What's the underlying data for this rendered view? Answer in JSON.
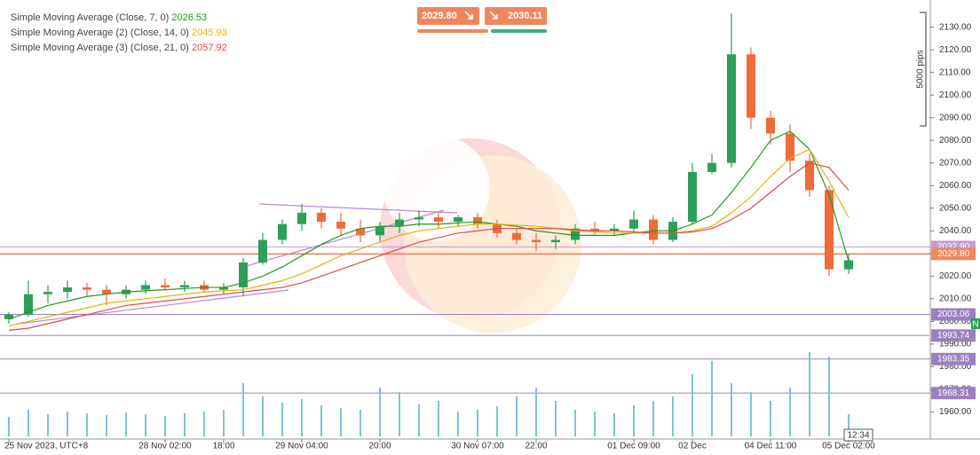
{
  "chart_data": {
    "type": "candlestick",
    "x": [
      "25 Nov 2023, UTC+8",
      null,
      null,
      null,
      null,
      null,
      null,
      null,
      "28 Nov 02:00",
      null,
      null,
      "18:00",
      null,
      null,
      null,
      "29 Nov 04:00",
      null,
      null,
      null,
      "20:00",
      null,
      null,
      null,
      null,
      "30 Nov 07:00",
      null,
      null,
      "22:00",
      null,
      null,
      null,
      null,
      "01 Dec 09:00",
      null,
      null,
      "02 Dec",
      null,
      null,
      null,
      "04 Dec 11:00",
      null,
      null,
      null,
      "05 Dec 02:00"
    ],
    "open": [
      2001,
      2003,
      2012,
      2013,
      2015,
      2014,
      2012,
      2014,
      2016,
      2015,
      2016,
      2014,
      2015,
      2026,
      2036,
      2043,
      2048,
      2044,
      2041,
      2038,
      2042,
      2045,
      2046,
      2044,
      2046,
      2043,
      2039,
      2036,
      2035,
      2036,
      2041,
      2040,
      2041,
      2045,
      2036,
      2044,
      2066,
      2070,
      2118,
      2090,
      2083,
      2071,
      2058,
      2023
    ],
    "high": [
      2004,
      2018,
      2016,
      2018,
      2017,
      2016,
      2016,
      2018,
      2019,
      2018,
      2018,
      2017,
      2028,
      2039,
      2045,
      2052,
      2050,
      2048,
      2045,
      2044,
      2048,
      2049,
      2048,
      2047,
      2048,
      2045,
      2041,
      2039,
      2038,
      2043,
      2044,
      2043,
      2049,
      2047,
      2046,
      2070,
      2074,
      2136,
      2121,
      2093,
      2087,
      2074,
      2060,
      2030
    ],
    "low": [
      1999,
      2002,
      2008,
      2010,
      2011,
      2007,
      2010,
      2012,
      2014,
      2013,
      2013,
      2012,
      2011,
      2025,
      2034,
      2040,
      2041,
      2038,
      2035,
      2035,
      2039,
      2042,
      2041,
      2042,
      2041,
      2037,
      2034,
      2031,
      2032,
      2034,
      2038,
      2038,
      2039,
      2034,
      2035,
      2043,
      2065,
      2068,
      2085,
      2078,
      2066,
      2055,
      2020,
      2021
    ],
    "close": [
      2003,
      2012,
      2013,
      2015,
      2014,
      2012,
      2014,
      2016,
      2015,
      2016,
      2014,
      2015,
      2026,
      2036,
      2043,
      2048,
      2044,
      2041,
      2038,
      2042,
      2045,
      2046,
      2044,
      2046,
      2043,
      2039,
      2036,
      2035,
      2036,
      2041,
      2040,
      2041,
      2045,
      2036,
      2044,
      2066,
      2070,
      2118,
      2090,
      2083,
      2071,
      2058,
      2023,
      2027
    ],
    "up_color": "#2e9e5b",
    "down_color": "#f06a3a",
    "series": [
      {
        "name": "Simple Moving Average (Close, 7, 0)",
        "color": "#1f9a1f",
        "values": [
          2001,
          2004,
          2007,
          2009,
          2011,
          2012,
          2013,
          2013.5,
          2014,
          2014.5,
          2015,
          2015,
          2017,
          2020,
          2024,
          2029,
          2034,
          2038,
          2041,
          2042,
          2042,
          2043,
          2043,
          2043.5,
          2044,
          2043,
          2042,
          2040,
          2039,
          2038,
          2038,
          2038,
          2039,
          2040,
          2040,
          2043,
          2047,
          2057,
          2068,
          2080,
          2084,
          2076,
          2056,
          2026.53
        ]
      },
      {
        "name": "Simple Moving Average (2) (Close, 14, 0)",
        "color": "#e8b00c",
        "values": [
          1998,
          2000,
          2002,
          2004,
          2006,
          2008,
          2009,
          2010,
          2011,
          2012,
          2013,
          2013.5,
          2014,
          2016,
          2018,
          2021,
          2025,
          2029,
          2032,
          2035,
          2038,
          2040,
          2041,
          2042,
          2043,
          2043,
          2042.5,
          2042,
          2041,
          2040,
          2039.5,
          2039,
          2039,
          2039,
          2039,
          2040,
          2042,
          2048,
          2055,
          2064,
          2072,
          2076,
          2062,
          2045.93
        ]
      },
      {
        "name": "Simple Moving Average (3) (Close, 21, 0)",
        "color": "#e04848",
        "values": [
          1996,
          1997,
          1999,
          2001,
          2003,
          2005,
          2007,
          2008,
          2009,
          2010,
          2011,
          2012,
          2013,
          2014,
          2015,
          2017,
          2020,
          2023,
          2026,
          2029,
          2032,
          2035,
          2037,
          2039,
          2040,
          2041,
          2041,
          2041,
          2041,
          2040.5,
          2040,
          2040,
          2039.5,
          2039,
          2039,
          2039.5,
          2041,
          2045,
          2050,
          2057,
          2064,
          2070,
          2068,
          2057.92
        ]
      }
    ],
    "volume": [
      22,
      30,
      25,
      28,
      26,
      24,
      27,
      25,
      23,
      26,
      28,
      30,
      60,
      45,
      38,
      42,
      35,
      32,
      30,
      55,
      50,
      36,
      40,
      28,
      30,
      34,
      45,
      55,
      40,
      30,
      28,
      26,
      35,
      40,
      45,
      70,
      85,
      60,
      50,
      40,
      55,
      95,
      90,
      25
    ],
    "volume_color": "#7cc4d6",
    "volume_lim": [
      0,
      100
    ],
    "ylim": [
      1948,
      2142
    ],
    "yticks": [
      {
        "value": 1960,
        "label": "1960.00"
      },
      {
        "value": 1970,
        "label": "1970.00"
      },
      {
        "value": 1980,
        "label": "1980.00"
      },
      {
        "value": 1990,
        "label": "1990.00"
      },
      {
        "value": 2000,
        "label": "2000.00"
      },
      {
        "value": 2010,
        "label": "2010.00"
      },
      {
        "value": 2020,
        "label": "2020.00"
      },
      {
        "value": 2030,
        "label": "2030.00"
      },
      {
        "value": 2040,
        "label": "2040.00"
      },
      {
        "value": 2050,
        "label": "2050.00"
      },
      {
        "value": 2060,
        "label": "2060.00"
      },
      {
        "value": 2070,
        "label": "2070.00"
      },
      {
        "value": 2080,
        "label": "2080.00"
      },
      {
        "value": 2090,
        "label": "2090.00"
      },
      {
        "value": 2100,
        "label": "2100.00"
      },
      {
        "value": 2110,
        "label": "2110.00"
      },
      {
        "value": 2120,
        "label": "2120.00"
      },
      {
        "value": 2130,
        "label": "2130.00"
      }
    ],
    "levels": [
      {
        "value": 2032.9,
        "label": "2032.90",
        "color": "#c79bd0"
      },
      {
        "value": 2029.8,
        "label": "2029.80",
        "color": "#f0865e"
      },
      {
        "value": 2003.06,
        "label": "2003.06",
        "color": "#9b80c0"
      },
      {
        "value": 1993.74,
        "label": "1993.74",
        "color": "#9b80c0"
      },
      {
        "value": 1983.35,
        "label": "1983.35",
        "color": "#9b80c0"
      },
      {
        "value": 1968.31,
        "label": "1968.31",
        "color": "#9b80c0"
      }
    ],
    "buy_price": "2030.11",
    "ruler_label": "5000 pips",
    "countdown": "12:34",
    "marker_label": "N"
  }
}
